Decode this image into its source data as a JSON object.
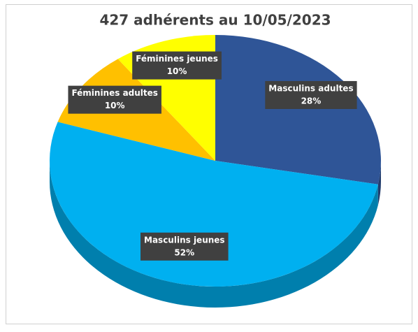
{
  "chart_data": {
    "type": "pie3d",
    "title": "427 adhérents au 10/05/2023",
    "categories": [
      "Masculins adultes",
      "Masculins jeunes",
      "Féminines adultes",
      "Féminines jeunes"
    ],
    "values": [
      28,
      52,
      10,
      10
    ],
    "value_labels": [
      "28%",
      "52%",
      "10%",
      "10%"
    ],
    "colors": [
      "#2f5597",
      "#00b0f0",
      "#ffc000",
      "#ffff00"
    ]
  }
}
